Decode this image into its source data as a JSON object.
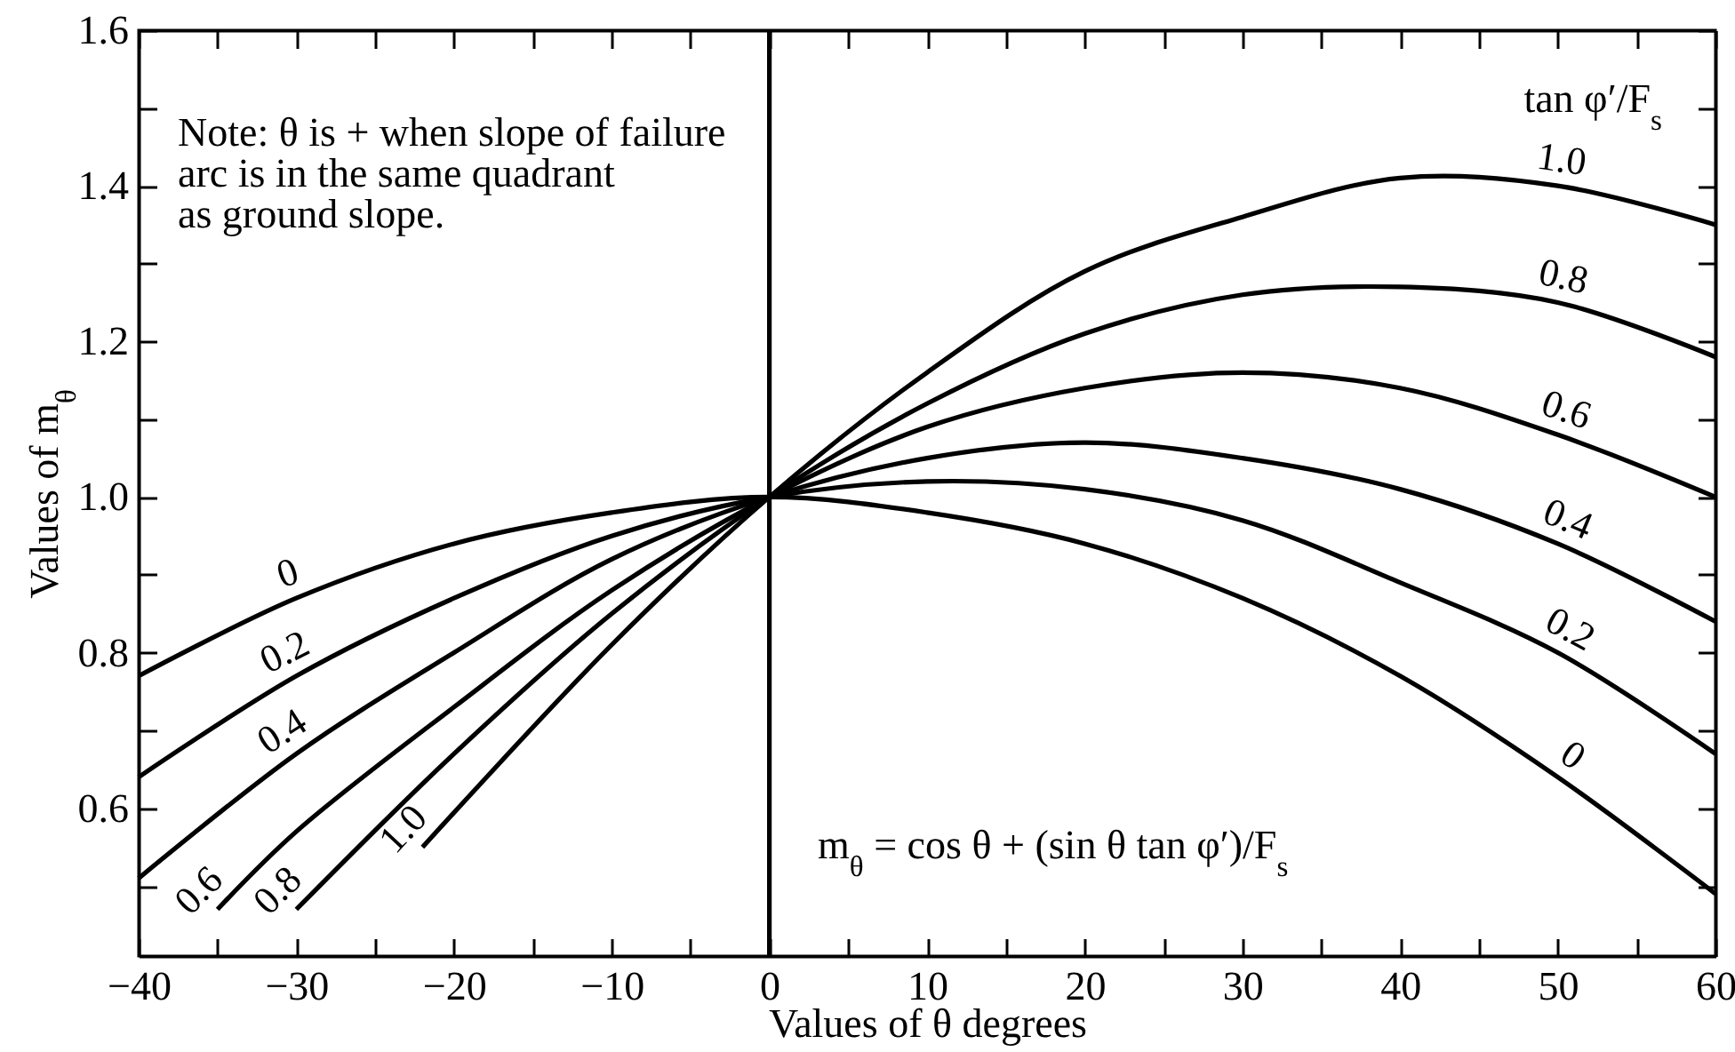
{
  "chart_data": {
    "type": "line",
    "xlabel": "Values of θ degrees",
    "ylabel": "Values of m$_{θ}$",
    "legend_title": "tan φ′/F$_{s}$",
    "annotations": [
      "Note: θ is + when slope of failure arc is in the same quadrant as ground slope.",
      "m$_{θ}$ = cos θ + (sin θ tan φ′)/F$_{s}$"
    ],
    "xlim": [
      -40,
      60
    ],
    "ylim": [
      0.41,
      1.6
    ],
    "xticks": [
      -40,
      {
        "value": -35,
        "label": null
      },
      -30,
      {
        "value": -25,
        "label": null
      },
      -20,
      {
        "value": -15,
        "label": null
      },
      -10,
      {
        "value": -5,
        "label": null
      },
      0,
      {
        "value": 5,
        "label": null
      },
      10,
      {
        "value": 15,
        "label": null
      },
      20,
      {
        "value": 25,
        "label": null
      },
      30,
      {
        "value": 35,
        "label": null
      },
      40,
      {
        "value": 45,
        "label": null
      },
      50,
      {
        "value": 55,
        "label": null
      },
      60
    ],
    "yticks": [
      {
        "value": 0.5,
        "label": null
      },
      0.6,
      {
        "value": 0.7,
        "label": null
      },
      0.8,
      {
        "value": 0.9,
        "label": null
      },
      {
        "value": 1,
        "label": "1.0"
      },
      {
        "value": 1.1,
        "label": null
      },
      1.2,
      {
        "value": 1.3,
        "label": null
      },
      1.4,
      {
        "value": 1.5,
        "label": null
      },
      1.6
    ],
    "ref_lines": [
      {
        "axis": "x",
        "value": 0,
        "color": "#000000"
      }
    ],
    "series": [
      {
        "name": "0",
        "color": "#000000",
        "x": [
          -40,
          -30,
          -20,
          -10,
          0,
          10,
          20,
          30,
          40,
          50,
          60
        ],
        "values": [
          0.77,
          0.87,
          0.94,
          0.98,
          1.0,
          0.98,
          0.94,
          0.87,
          0.77,
          0.64,
          0.49
        ]
      },
      {
        "name": "0.2",
        "color": "#000000",
        "x": [
          -40,
          -30,
          -20,
          -10,
          0,
          10,
          20,
          30,
          40,
          50,
          60
        ],
        "values": [
          0.64,
          0.77,
          0.87,
          0.95,
          1.0,
          1.02,
          1.01,
          0.97,
          0.89,
          0.8,
          0.67
        ]
      },
      {
        "name": "0.4",
        "color": "#000000",
        "x": [
          -40,
          -30,
          -20,
          -10,
          0,
          10,
          20,
          30,
          40,
          50,
          60
        ],
        "values": [
          0.51,
          0.67,
          0.8,
          0.92,
          1.0,
          1.05,
          1.07,
          1.05,
          1.01,
          0.94,
          0.84
        ]
      },
      {
        "name": "0.6",
        "color": "#000000",
        "x": [
          -35,
          -30,
          -20,
          -10,
          0,
          10,
          20,
          30,
          40,
          50,
          60
        ],
        "values": [
          0.47,
          0.57,
          0.73,
          0.88,
          1.0,
          1.09,
          1.14,
          1.16,
          1.14,
          1.08,
          1.0
        ]
      },
      {
        "name": "0.8",
        "color": "#000000",
        "x": [
          -30,
          -20,
          -10,
          0,
          10,
          20,
          30,
          40,
          50,
          60
        ],
        "values": [
          0.47,
          0.67,
          0.85,
          1.0,
          1.12,
          1.21,
          1.26,
          1.27,
          1.25,
          1.18
        ]
      },
      {
        "name": "1.0",
        "color": "#000000",
        "x": [
          -22,
          -10,
          0,
          10,
          20,
          30,
          40,
          50,
          60
        ],
        "values": [
          0.55,
          0.81,
          1.0,
          1.16,
          1.29,
          1.36,
          1.41,
          1.4,
          1.35
        ]
      }
    ]
  }
}
